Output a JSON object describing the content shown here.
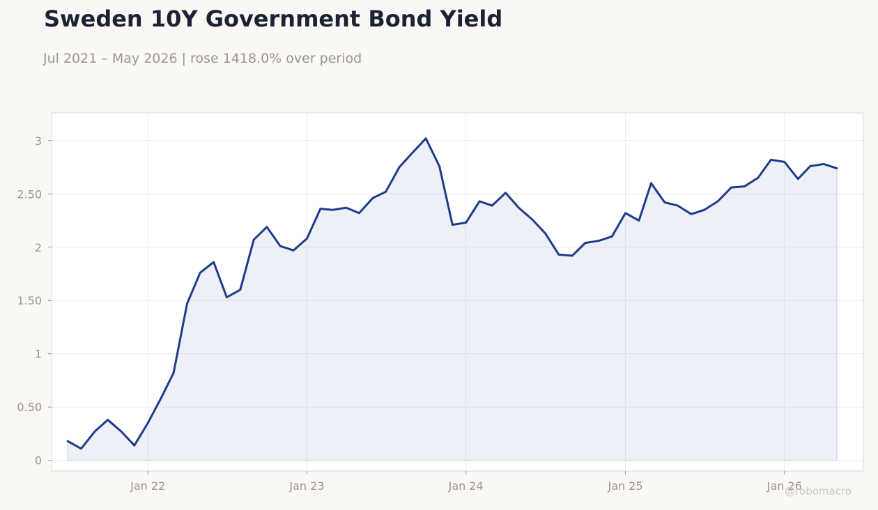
{
  "header": {
    "title": "Sweden 10Y Government Bond Yield",
    "subtitle": "Jul 2021 – May 2026 | rose 1418.0% over period"
  },
  "watermark": "@robomacro",
  "colors": {
    "line": "#1f3a8a",
    "fill": "#1f3a8a",
    "background": "#f9f8f5",
    "plot_background": "#ffffff",
    "title": "#1a2233",
    "muted_text": "#9a9690"
  },
  "chart_data": {
    "type": "area",
    "title": "Sweden 10Y Government Bond Yield",
    "subtitle": "Jul 2021 – May 2026 | rose 1418.0% over period",
    "xlabel": "",
    "ylabel": "",
    "grid": true,
    "ylim": [
      -0.1,
      3.26
    ],
    "xlim": [
      "2021-05-25",
      "2026-07-01"
    ],
    "y_ticks": [
      0,
      0.5,
      1,
      1.5,
      2,
      2.5,
      3
    ],
    "y_tick_labels": [
      "0",
      "0.50",
      "1",
      "1.50",
      "2",
      "2.50",
      "3"
    ],
    "x_ticks": [
      "2022-01-01",
      "2023-01-01",
      "2024-01-01",
      "2025-01-01",
      "2026-01-01"
    ],
    "x_tick_labels": [
      "Jan 22",
      "Jan 23",
      "Jan 24",
      "Jan 25",
      "Jan 26"
    ],
    "series": [
      {
        "x": [
          "2021-07-01",
          "2021-08-01",
          "2021-09-01",
          "2021-10-01",
          "2021-11-01",
          "2021-12-01",
          "2022-01-01",
          "2022-02-01",
          "2022-03-01",
          "2022-04-01",
          "2022-05-01",
          "2022-06-01",
          "2022-07-01",
          "2022-08-01",
          "2022-09-01",
          "2022-10-01",
          "2022-11-01",
          "2022-12-01",
          "2023-01-01",
          "2023-02-01",
          "2023-03-01",
          "2023-04-01",
          "2023-05-01",
          "2023-06-01",
          "2023-07-01",
          "2023-08-01",
          "2023-09-01",
          "2023-10-01",
          "2023-11-01",
          "2023-12-01",
          "2024-01-01",
          "2024-02-01",
          "2024-03-01",
          "2024-04-01",
          "2024-05-01",
          "2024-06-01",
          "2024-07-01",
          "2024-08-01",
          "2024-09-01",
          "2024-10-01",
          "2024-11-01",
          "2024-12-01",
          "2025-01-01",
          "2025-02-01",
          "2025-03-01",
          "2025-04-01",
          "2025-05-01",
          "2025-06-01",
          "2025-07-01",
          "2025-08-01",
          "2025-09-01",
          "2025-10-01",
          "2025-11-01",
          "2025-12-01",
          "2026-01-01",
          "2026-02-01",
          "2026-03-01",
          "2026-04-01",
          "2026-05-01"
        ],
        "values": [
          0.18,
          0.11,
          0.27,
          0.38,
          0.27,
          0.14,
          0.35,
          0.59,
          0.82,
          1.47,
          1.76,
          1.86,
          1.53,
          1.6,
          2.07,
          2.19,
          2.01,
          1.97,
          2.08,
          2.36,
          2.35,
          2.37,
          2.32,
          2.46,
          2.52,
          2.75,
          2.89,
          3.02,
          2.76,
          2.21,
          2.23,
          2.43,
          2.39,
          2.51,
          2.37,
          2.26,
          2.13,
          1.93,
          1.92,
          2.04,
          2.06,
          2.1,
          2.32,
          2.25,
          2.6,
          2.42,
          2.39,
          2.31,
          2.35,
          2.43,
          2.56,
          2.57,
          2.65,
          2.82,
          2.8,
          2.64,
          2.76,
          2.78,
          2.74
        ]
      }
    ]
  }
}
